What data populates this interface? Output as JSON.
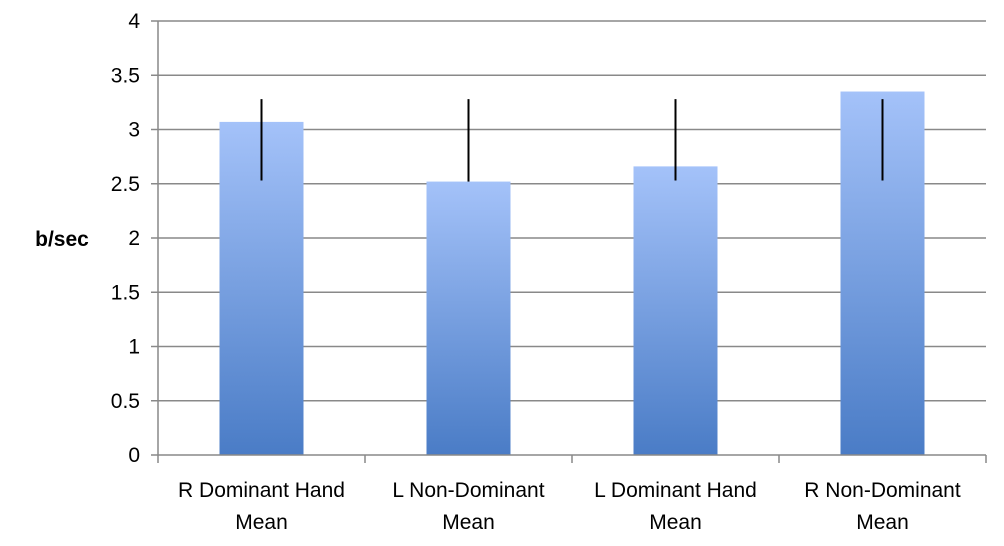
{
  "chart_data": {
    "type": "bar",
    "title": "",
    "xlabel": "",
    "ylabel": "b/sec",
    "ylim": [
      0,
      4
    ],
    "yticks": [
      0,
      0.5,
      1,
      1.5,
      2,
      2.5,
      3,
      3.5,
      4
    ],
    "ytick_labels": [
      "0",
      "0.5",
      "1",
      "1.5",
      "2",
      "2.5",
      "3",
      "3.5",
      "4"
    ],
    "categories": [
      [
        "R Dominant Hand",
        "Mean"
      ],
      [
        "L Non-Dominant",
        "Mean"
      ],
      [
        "L Dominant Hand",
        "Mean"
      ],
      [
        "R Non-Dominant",
        "Mean"
      ]
    ],
    "values": [
      3.07,
      2.52,
      2.66,
      3.35
    ],
    "error_bars": [
      {
        "low": 2.53,
        "high": 3.28
      },
      {
        "low": 2.52,
        "high": 3.28
      },
      {
        "low": 2.53,
        "high": 3.28
      },
      {
        "low": 2.53,
        "high": 3.28
      }
    ],
    "grid": true,
    "legend": "none",
    "colors": {
      "bar_top": "#a4c2f9",
      "bar_bottom": "#4a7cc6",
      "gridline": "#898989",
      "error_bar": "#000000",
      "axis": "#898989"
    }
  }
}
